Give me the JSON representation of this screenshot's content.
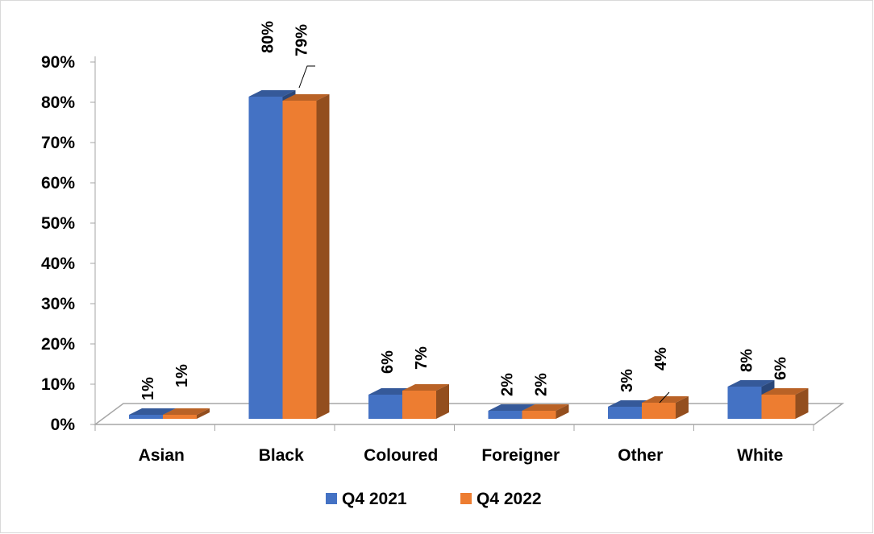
{
  "chart_data": {
    "type": "bar",
    "categories": [
      "Asian",
      "Black",
      "Coloured",
      "Foreigner",
      "Other",
      "White"
    ],
    "series": [
      {
        "name": "Q4 2021",
        "values": [
          1,
          80,
          6,
          2,
          3,
          8
        ],
        "labels": [
          "1%",
          "80%",
          "6%",
          "2%",
          "3%",
          "8%"
        ],
        "color": "#4472C4"
      },
      {
        "name": "Q4 2022",
        "values": [
          1,
          79,
          7,
          2,
          4,
          6
        ],
        "labels": [
          "1%",
          "79%",
          "7%",
          "2%",
          "4%",
          "6%"
        ],
        "color": "#ED7D31"
      }
    ],
    "y_ticks": [
      "0%",
      "10%",
      "20%",
      "30%",
      "40%",
      "50%",
      "60%",
      "70%",
      "80%",
      "90%"
    ],
    "ylim": [
      0,
      90
    ],
    "style": "3d-clustered-column",
    "legend_position": "bottom",
    "grid": false
  }
}
